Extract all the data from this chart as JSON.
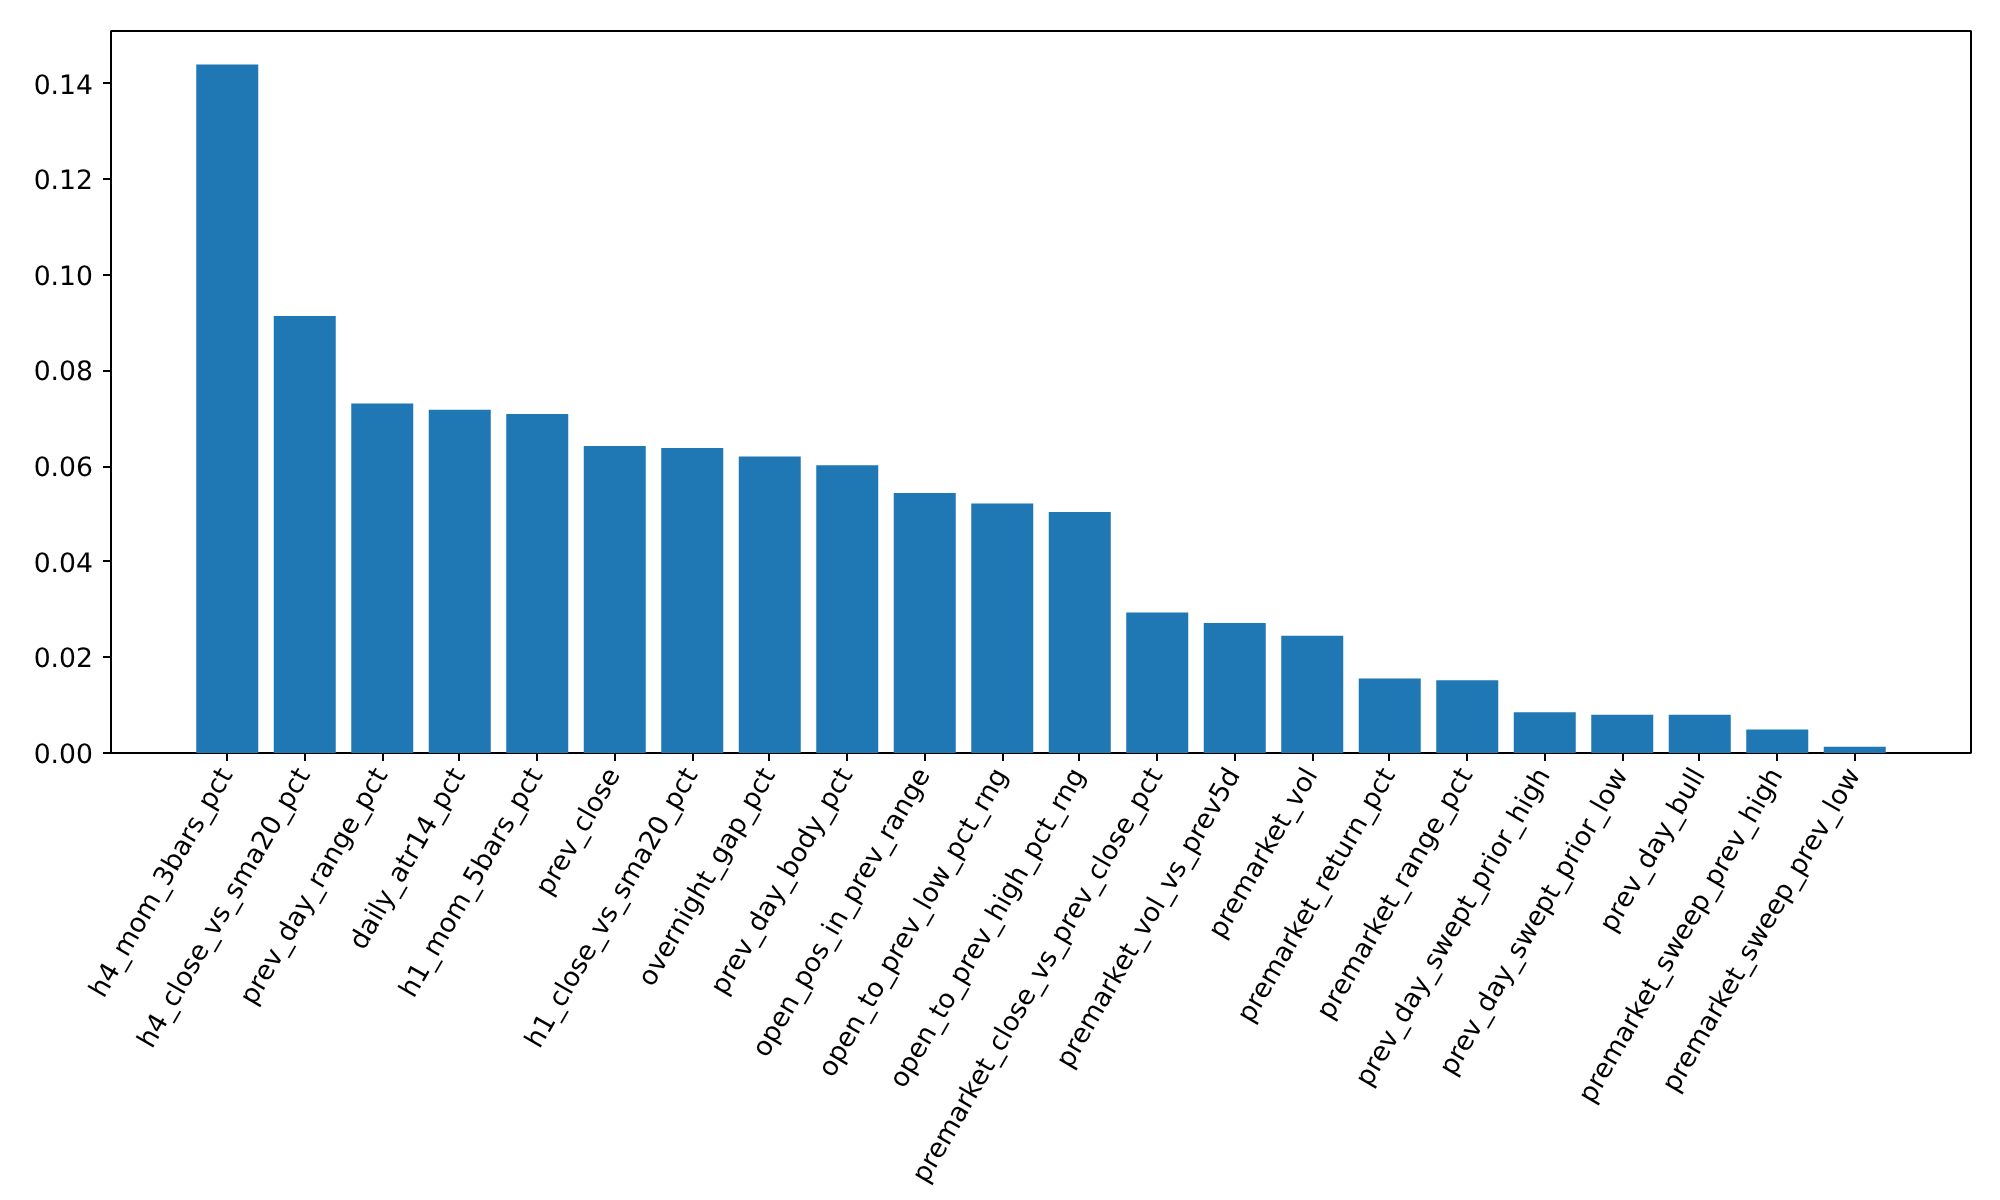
{
  "chart_data": {
    "type": "bar",
    "categories": [
      "h4_mom_3bars_pct",
      "h4_close_vs_sma20_pct",
      "prev_day_range_pct",
      "daily_atr14_pct",
      "h1_mom_5bars_pct",
      "prev_close",
      "h1_close_vs_sma20_pct",
      "overnight_gap_pct",
      "prev_day_body_pct",
      "open_pos_in_prev_range",
      "open_to_prev_low_pct_rng",
      "open_to_prev_high_pct_rng",
      "premarket_close_vs_prev_close_pct",
      "premarket_vol_vs_prev5d",
      "premarket_vol",
      "premarket_return_pct",
      "premarket_range_pct",
      "prev_day_swept_prior_high",
      "prev_day_swept_prior_low",
      "prev_day_bull",
      "premarket_sweep_prev_high",
      "premarket_sweep_prev_low"
    ],
    "values": [
      0.144,
      0.0914,
      0.0731,
      0.0718,
      0.0709,
      0.0642,
      0.0638,
      0.062,
      0.0602,
      0.0544,
      0.0522,
      0.0504,
      0.0294,
      0.0272,
      0.0245,
      0.0156,
      0.0152,
      0.0085,
      0.008,
      0.008,
      0.0049,
      0.0013
    ],
    "color": "#1f77b4",
    "ylim": [
      0,
      0.151
    ],
    "yticks": [
      {
        "value": 0,
        "label": "0.00"
      },
      {
        "value": 0.02,
        "label": "0.02"
      },
      {
        "value": 0.04,
        "label": "0.04"
      },
      {
        "value": 0.06,
        "label": "0.06"
      },
      {
        "value": 0.08,
        "label": "0.08"
      },
      {
        "value": 0.1,
        "label": "0.10"
      },
      {
        "value": 0.12,
        "label": "0.12"
      },
      {
        "value": 0.14,
        "label": "0.14"
      }
    ],
    "grid": false
  }
}
